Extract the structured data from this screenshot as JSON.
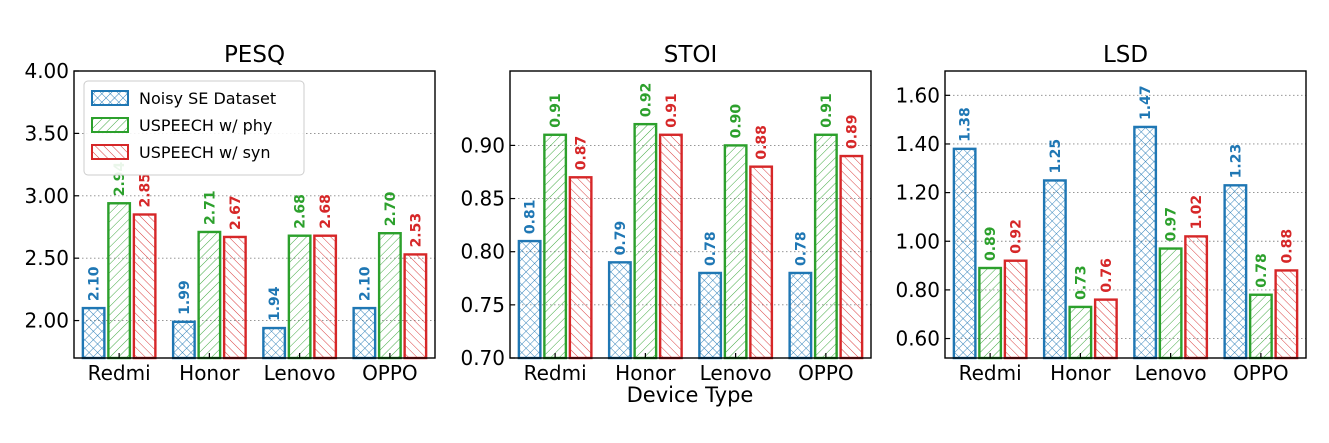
{
  "figure": {
    "xlabel": "Device Type"
  },
  "series_styles": [
    {
      "color": "#1f77b4",
      "hatch": "crosshatch"
    },
    {
      "color": "#2ca02c",
      "hatch": "forward-diagonal"
    },
    {
      "color": "#d62728",
      "hatch": "backward-diagonal"
    }
  ],
  "chart_data": [
    {
      "type": "bar",
      "title": "PESQ",
      "categories": [
        "Redmi",
        "Honor",
        "Lenovo",
        "OPPO"
      ],
      "series": [
        {
          "name": "Noisy SE Dataset",
          "values": [
            2.1,
            1.99,
            1.94,
            2.1
          ]
        },
        {
          "name": "USPEECH w/ phy",
          "values": [
            2.94,
            2.71,
            2.68,
            2.7
          ]
        },
        {
          "name": "USPEECH w/ syn",
          "values": [
            2.85,
            2.67,
            2.68,
            2.53
          ]
        }
      ],
      "ylim": [
        1.7,
        4.0
      ],
      "yticks": [
        2.0,
        2.5,
        3.0,
        3.5,
        4.0
      ],
      "ytick_labels": [
        "2.00",
        "2.50",
        "3.00",
        "3.50",
        "4.00"
      ],
      "value_labels": [
        [
          "2.10",
          "1.99",
          "1.94",
          "2.10"
        ],
        [
          "2.94",
          "2.71",
          "2.68",
          "2.70"
        ],
        [
          "2.85",
          "2.67",
          "2.68",
          "2.53"
        ]
      ],
      "grid": "horizontal dotted",
      "legend": "top-left"
    },
    {
      "type": "bar",
      "title": "STOI",
      "categories": [
        "Redmi",
        "Honor",
        "Lenovo",
        "OPPO"
      ],
      "series": [
        {
          "name": "Noisy SE Dataset",
          "values": [
            0.81,
            0.79,
            0.78,
            0.78
          ]
        },
        {
          "name": "USPEECH w/ phy",
          "values": [
            0.91,
            0.92,
            0.9,
            0.91
          ]
        },
        {
          "name": "USPEECH w/ syn",
          "values": [
            0.87,
            0.91,
            0.88,
            0.89
          ]
        }
      ],
      "ylim": [
        0.7,
        0.97
      ],
      "yticks": [
        0.7,
        0.75,
        0.8,
        0.85,
        0.9
      ],
      "ytick_labels": [
        "0.70",
        "0.75",
        "0.80",
        "0.85",
        "0.90"
      ],
      "value_labels": [
        [
          "0.81",
          "0.79",
          "0.78",
          "0.78"
        ],
        [
          "0.91",
          "0.92",
          "0.90",
          "0.91"
        ],
        [
          "0.87",
          "0.91",
          "0.88",
          "0.89"
        ]
      ],
      "grid": "horizontal dotted"
    },
    {
      "type": "bar",
      "title": "LSD",
      "categories": [
        "Redmi",
        "Honor",
        "Lenovo",
        "OPPO"
      ],
      "series": [
        {
          "name": "Noisy SE Dataset",
          "values": [
            1.38,
            1.25,
            1.47,
            1.23
          ]
        },
        {
          "name": "USPEECH w/ phy",
          "values": [
            0.89,
            0.73,
            0.97,
            0.78
          ]
        },
        {
          "name": "USPEECH w/ syn",
          "values": [
            0.92,
            0.76,
            1.02,
            0.88
          ]
        }
      ],
      "ylim": [
        0.52,
        1.7
      ],
      "yticks": [
        0.6,
        0.8,
        1.0,
        1.2,
        1.4,
        1.6
      ],
      "ytick_labels": [
        "0.60",
        "0.80",
        "1.00",
        "1.20",
        "1.40",
        "1.60"
      ],
      "value_labels": [
        [
          "1.38",
          "1.25",
          "1.47",
          "1.23"
        ],
        [
          "0.89",
          "0.73",
          "0.97",
          "0.78"
        ],
        [
          "0.92",
          "0.76",
          "1.02",
          "0.88"
        ]
      ],
      "grid": "horizontal dotted"
    }
  ]
}
